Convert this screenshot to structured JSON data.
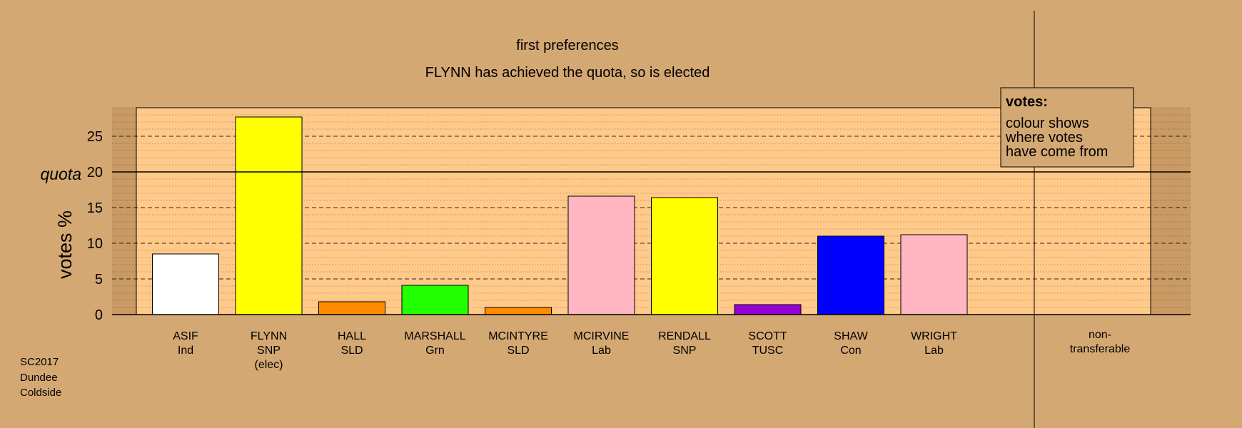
{
  "chart_data": {
    "type": "bar",
    "title": "first preferences",
    "subtitle": "FLYNN has achieved the quota, so is elected",
    "ylabel": "votes %",
    "quota_label": "quota",
    "quota": 20,
    "ylim": [
      0,
      29
    ],
    "yticks": [
      0,
      5,
      10,
      15,
      20,
      25
    ],
    "categories": [
      [
        "ASIF",
        "Ind"
      ],
      [
        "FLYNN",
        "SNP",
        "(elec)"
      ],
      [
        "HALL",
        "SLD"
      ],
      [
        "MARSHALL",
        "Grn"
      ],
      [
        "MCINTYRE",
        "SLD"
      ],
      [
        "MCIRVINE",
        "Lab"
      ],
      [
        "RENDALL",
        "SNP"
      ],
      [
        "SCOTT",
        "TUSC"
      ],
      [
        "SHAW",
        "Con"
      ],
      [
        "WRIGHT",
        "Lab"
      ]
    ],
    "values": [
      8.5,
      27.7,
      1.8,
      4.1,
      1.0,
      16.6,
      16.4,
      1.4,
      11.0,
      11.2
    ],
    "colors": [
      "#ffffff",
      "#ffff00",
      "#ff8c00",
      "#22ff00",
      "#ff8c00",
      "#ffb6c1",
      "#ffff00",
      "#9400d3",
      "#0000ff",
      "#ffb6c1"
    ],
    "nontransferable": {
      "label": [
        "non-",
        "transferable"
      ],
      "value": 0
    },
    "legend": {
      "title": "votes:",
      "lines": [
        "colour shows",
        "where votes",
        "have come from"
      ],
      "position": "top-right"
    },
    "grid": true
  },
  "footer": {
    "lines": [
      "SC2017",
      "Dundee",
      "Coldside"
    ]
  }
}
